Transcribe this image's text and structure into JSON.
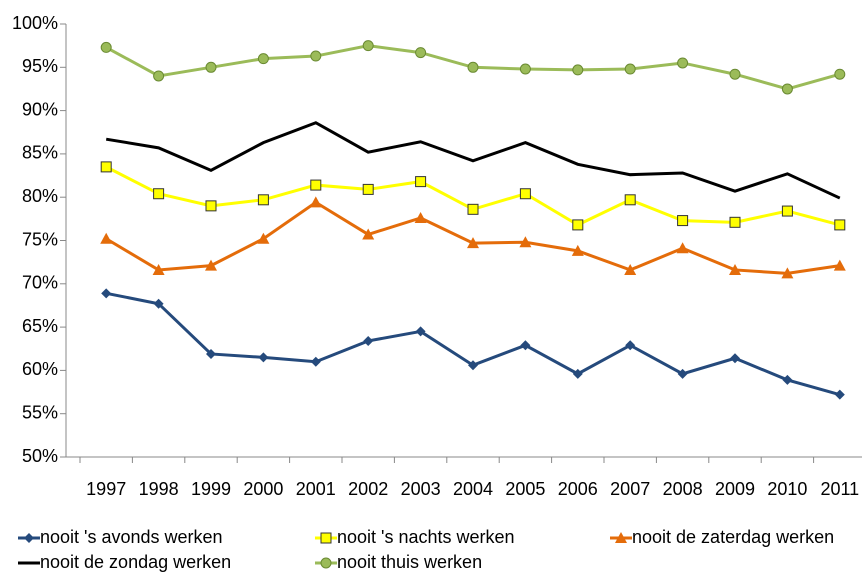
{
  "chart_data": {
    "type": "line",
    "categories": [
      "1997",
      "1998",
      "1999",
      "2000",
      "2001",
      "2002",
      "2003",
      "2004",
      "2005",
      "2006",
      "2007",
      "2008",
      "2009",
      "2010",
      "2011"
    ],
    "series": [
      {
        "name": "nooit 's avonds werken",
        "color": "#254a7c",
        "marker": "diamond",
        "values": [
          68.9,
          67.7,
          61.9,
          61.5,
          61.0,
          63.4,
          64.5,
          60.6,
          62.9,
          59.6,
          62.9,
          59.6,
          61.4,
          58.9,
          57.2
        ]
      },
      {
        "name": "nooit 's nachts werken",
        "color": "#ffff00",
        "marker": "square",
        "values": [
          83.5,
          80.4,
          79.0,
          79.7,
          81.4,
          80.9,
          81.8,
          78.6,
          80.4,
          76.8,
          79.7,
          77.3,
          77.1,
          78.4,
          76.8
        ]
      },
      {
        "name": "nooit de zaterdag werken",
        "color": "#e46c0a",
        "marker": "triangle",
        "values": [
          75.2,
          71.6,
          72.1,
          75.2,
          79.4,
          75.7,
          77.6,
          74.7,
          74.8,
          73.8,
          71.6,
          74.1,
          71.6,
          71.2,
          72.1
        ]
      },
      {
        "name": "nooit de zondag werken",
        "color": "#000000",
        "marker": "none",
        "values": [
          86.7,
          85.7,
          83.1,
          86.3,
          88.6,
          85.2,
          86.4,
          84.2,
          86.3,
          83.8,
          82.6,
          82.8,
          80.7,
          82.7,
          79.9
        ]
      },
      {
        "name": "nooit thuis werken",
        "color": "#9bbb59",
        "marker": "circle",
        "values": [
          97.3,
          94.0,
          95.0,
          96.0,
          96.3,
          97.5,
          96.7,
          95.0,
          94.8,
          94.7,
          94.8,
          95.5,
          94.2,
          92.5,
          94.2
        ]
      }
    ],
    "ylim": [
      50,
      100
    ],
    "yticks": [
      {
        "value": 50,
        "label": "50%"
      },
      {
        "value": 55,
        "label": "55%"
      },
      {
        "value": 60,
        "label": "60%"
      },
      {
        "value": 65,
        "label": "65%"
      },
      {
        "value": 70,
        "label": "70%"
      },
      {
        "value": 75,
        "label": "75%"
      },
      {
        "value": 80,
        "label": "80%"
      },
      {
        "value": 85,
        "label": "85%"
      },
      {
        "value": 90,
        "label": "90%"
      },
      {
        "value": 95,
        "label": "95%"
      },
      {
        "value": 100,
        "label": "100%"
      }
    ],
    "grid": false
  }
}
